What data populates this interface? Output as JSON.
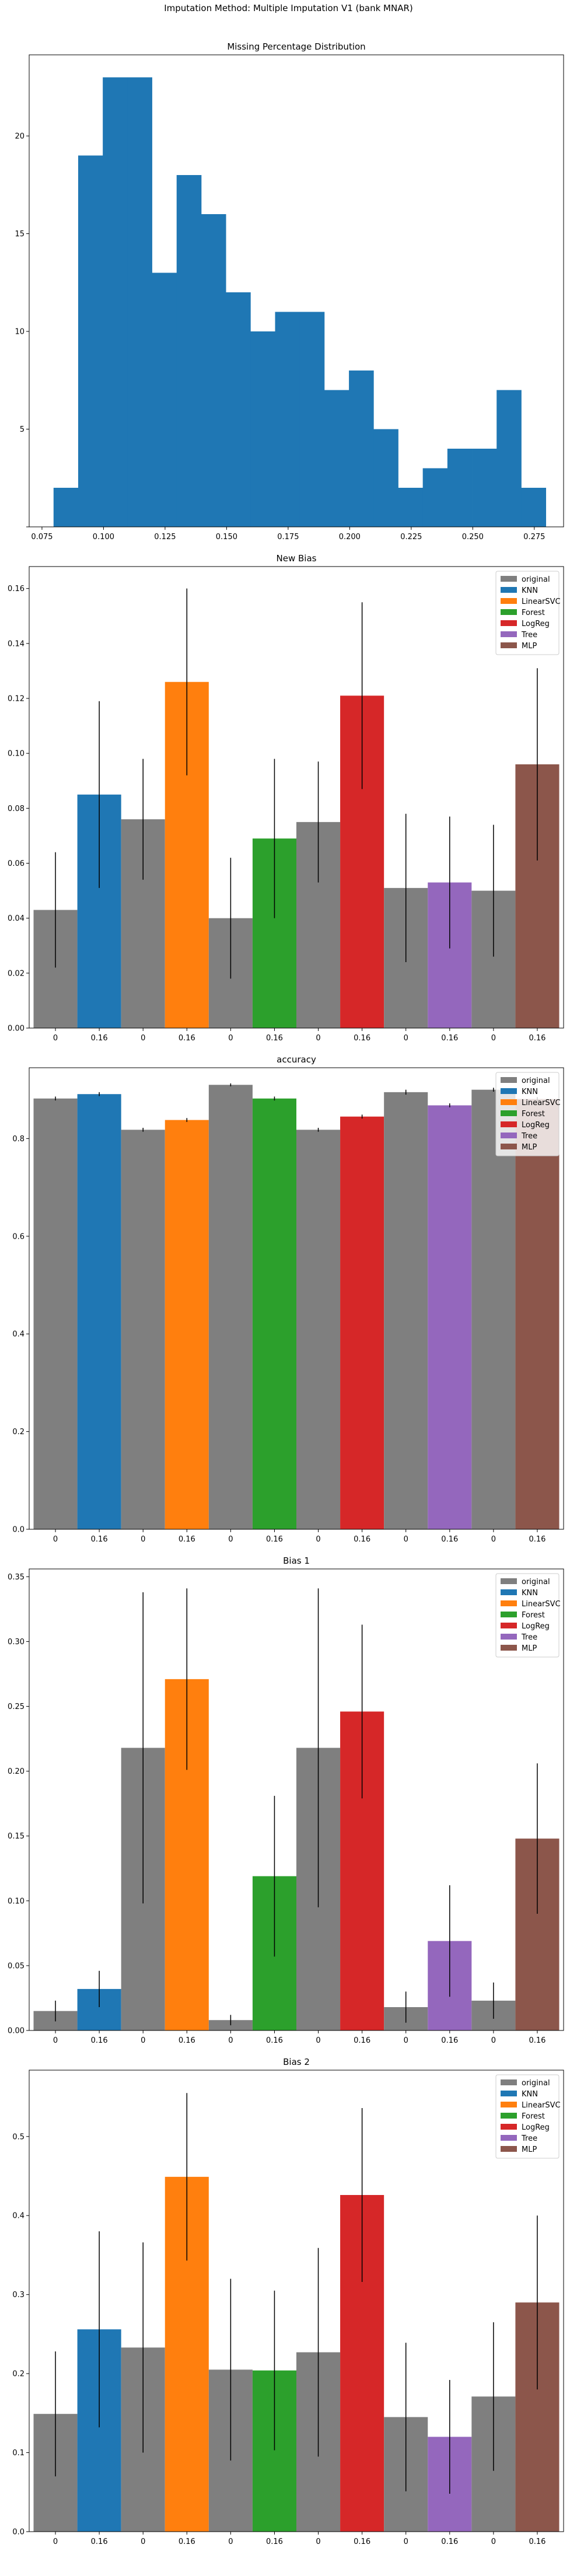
{
  "figure": {
    "suptitle": "Imputation Method: Multiple Imputation V1 (bank MNAR)"
  },
  "colors": {
    "original": "#7f7f7f",
    "KNN": "#1f77b4",
    "LinearSVC": "#ff7f0e",
    "Forest": "#2ca02c",
    "LogReg": "#d62728",
    "Tree": "#9467bd",
    "MLP": "#8c564b",
    "hist": "#1f77b4"
  },
  "chart_data": [
    {
      "type": "bar",
      "subtype": "histogram",
      "title": "Missing Percentage Distribution",
      "xlabel": "",
      "ylabel": "",
      "xlim": [
        0.0698,
        0.2869
      ],
      "ylim": [
        0,
        24.15
      ],
      "xticks": [
        0.075,
        0.1,
        0.125,
        0.15,
        0.175,
        0.2,
        0.225,
        0.25,
        0.275
      ],
      "xtick_labels": [
        "0.075",
        "0.100",
        "0.125",
        "0.150",
        "0.175",
        "0.200",
        "0.225",
        "0.250",
        "0.275"
      ],
      "yticks": [
        0,
        5,
        10,
        15,
        20
      ],
      "ytick_labels": [
        "",
        "5",
        "10",
        "15",
        "20"
      ],
      "bin_start": 0.0797,
      "bin_width": 0.01,
      "counts": [
        2,
        19,
        23,
        23,
        13,
        18,
        16,
        12,
        10,
        11,
        11,
        7,
        8,
        5,
        2,
        3,
        4,
        4,
        7,
        2
      ]
    },
    {
      "type": "bar",
      "title": "New Bias",
      "xlabel": "",
      "ylabel": "",
      "ylim": [
        0,
        0.168
      ],
      "yticks": [
        0,
        0.02,
        0.04,
        0.06,
        0.08,
        0.1,
        0.12,
        0.14,
        0.16
      ],
      "ytick_labels": [
        "0.00",
        "0.02",
        "0.04",
        "0.06",
        "0.08",
        "0.10",
        "0.12",
        "0.14",
        "0.16"
      ],
      "legend": "top-right",
      "legend_entries": [
        "original",
        "KNN",
        "LinearSVC",
        "Forest",
        "LogReg",
        "Tree",
        "MLP"
      ],
      "categories": [
        "0",
        "0.16"
      ],
      "groups": [
        {
          "method": "KNN",
          "values": [
            0.043,
            0.085
          ],
          "errors": [
            0.021,
            0.034
          ]
        },
        {
          "method": "LinearSVC",
          "values": [
            0.076,
            0.126
          ],
          "errors": [
            0.022,
            0.034
          ]
        },
        {
          "method": "Forest",
          "values": [
            0.04,
            0.069
          ],
          "errors": [
            0.022,
            0.029
          ]
        },
        {
          "method": "LogReg",
          "values": [
            0.075,
            0.121
          ],
          "errors": [
            0.022,
            0.034
          ]
        },
        {
          "method": "Tree",
          "values": [
            0.051,
            0.053
          ],
          "errors": [
            0.027,
            0.024
          ]
        },
        {
          "method": "MLP",
          "values": [
            0.05,
            0.096
          ],
          "errors": [
            0.024,
            0.035
          ]
        }
      ]
    },
    {
      "type": "bar",
      "title": "accuracy",
      "xlabel": "",
      "ylabel": "",
      "ylim": [
        0,
        0.945
      ],
      "yticks": [
        0,
        0.2,
        0.4,
        0.6,
        0.8
      ],
      "ytick_labels": [
        "0.0",
        "0.2",
        "0.4",
        "0.6",
        "0.8"
      ],
      "legend": "top-right",
      "legend_entries": [
        "original",
        "KNN",
        "LinearSVC",
        "Forest",
        "LogReg",
        "Tree",
        "MLP"
      ],
      "categories": [
        "0",
        "0.16"
      ],
      "groups": [
        {
          "method": "KNN",
          "values": [
            0.882,
            0.891
          ],
          "errors": [
            0.004,
            0.004
          ]
        },
        {
          "method": "LinearSVC",
          "values": [
            0.818,
            0.838
          ],
          "errors": [
            0.004,
            0.004
          ]
        },
        {
          "method": "Forest",
          "values": [
            0.91,
            0.882
          ],
          "errors": [
            0.003,
            0.004
          ]
        },
        {
          "method": "LogReg",
          "values": [
            0.818,
            0.845
          ],
          "errors": [
            0.004,
            0.004
          ]
        },
        {
          "method": "Tree",
          "values": [
            0.895,
            0.868
          ],
          "errors": [
            0.005,
            0.004
          ]
        },
        {
          "method": "MLP",
          "values": [
            0.9,
            0.881
          ],
          "errors": [
            0.004,
            0.004
          ]
        }
      ]
    },
    {
      "type": "bar",
      "title": "Bias 1",
      "xlabel": "",
      "ylabel": "",
      "ylim": [
        0,
        0.356
      ],
      "yticks": [
        0,
        0.05,
        0.1,
        0.15,
        0.2,
        0.25,
        0.3,
        0.35
      ],
      "ytick_labels": [
        "0.00",
        "0.05",
        "0.10",
        "0.15",
        "0.20",
        "0.25",
        "0.30",
        "0.35"
      ],
      "legend": "top-right",
      "legend_entries": [
        "original",
        "KNN",
        "LinearSVC",
        "Forest",
        "LogReg",
        "Tree",
        "MLP"
      ],
      "categories": [
        "0",
        "0.16"
      ],
      "groups": [
        {
          "method": "KNN",
          "values": [
            0.015,
            0.032
          ],
          "errors": [
            0.008,
            0.014
          ]
        },
        {
          "method": "LinearSVC",
          "values": [
            0.218,
            0.271
          ],
          "errors": [
            0.12,
            0.07
          ]
        },
        {
          "method": "Forest",
          "values": [
            0.008,
            0.119
          ],
          "errors": [
            0.004,
            0.062
          ]
        },
        {
          "method": "LogReg",
          "values": [
            0.218,
            0.246
          ],
          "errors": [
            0.123,
            0.067
          ]
        },
        {
          "method": "Tree",
          "values": [
            0.018,
            0.069
          ],
          "errors": [
            0.012,
            0.043
          ]
        },
        {
          "method": "MLP",
          "values": [
            0.023,
            0.148
          ],
          "errors": [
            0.014,
            0.058
          ]
        }
      ]
    },
    {
      "type": "bar",
      "title": "Bias 2",
      "xlabel": "",
      "ylabel": "",
      "ylim": [
        0,
        0.584
      ],
      "yticks": [
        0,
        0.1,
        0.2,
        0.3,
        0.4,
        0.5
      ],
      "ytick_labels": [
        "0.0",
        "0.1",
        "0.2",
        "0.3",
        "0.4",
        "0.5"
      ],
      "legend": "top-right",
      "legend_entries": [
        "original",
        "KNN",
        "LinearSVC",
        "Forest",
        "LogReg",
        "Tree",
        "MLP"
      ],
      "categories": [
        "0",
        "0.16"
      ],
      "groups": [
        {
          "method": "KNN",
          "values": [
            0.149,
            0.256
          ],
          "errors": [
            0.079,
            0.124
          ]
        },
        {
          "method": "LinearSVC",
          "values": [
            0.233,
            0.449
          ],
          "errors": [
            0.133,
            0.106
          ]
        },
        {
          "method": "Forest",
          "values": [
            0.205,
            0.204
          ],
          "errors": [
            0.115,
            0.101
          ]
        },
        {
          "method": "LogReg",
          "values": [
            0.227,
            0.426
          ],
          "errors": [
            0.132,
            0.11
          ]
        },
        {
          "method": "Tree",
          "values": [
            0.145,
            0.12
          ],
          "errors": [
            0.094,
            0.072
          ]
        },
        {
          "method": "MLP",
          "values": [
            0.171,
            0.29
          ],
          "errors": [
            0.094,
            0.11
          ]
        }
      ]
    }
  ]
}
